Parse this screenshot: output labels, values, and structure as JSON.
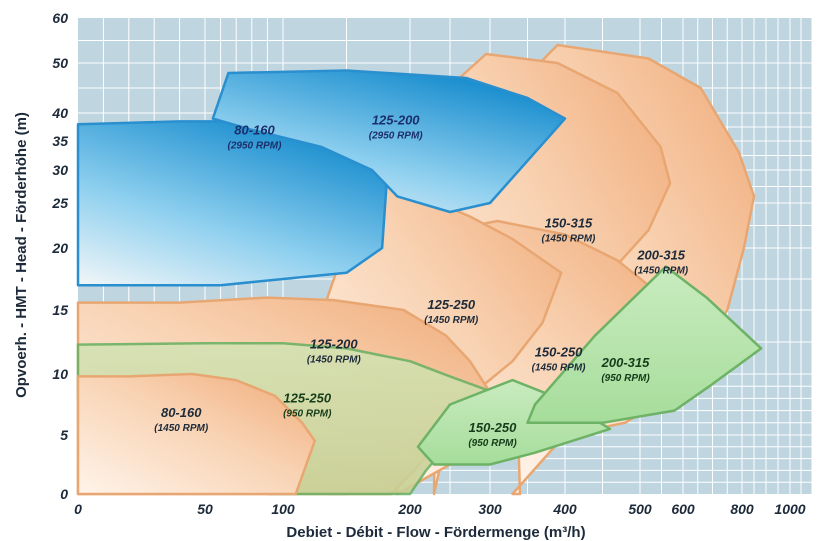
{
  "chart_data": {
    "type": "area",
    "xlabel": "Debiet - Débit  -  Flow  -  Fördermenge   (m³/h)",
    "ylabel": "Opvoerh.  -  HMT  -  Head  -  Förderhöhe  (m)",
    "x_ticks": [
      "0",
      "50",
      "100",
      "200",
      "300",
      "400",
      "500",
      "600",
      "800",
      "1000"
    ],
    "y_ticks": [
      "0",
      "5",
      "10",
      "15",
      "20",
      "25",
      "30",
      "35",
      "40",
      "50",
      "60"
    ],
    "grid": true,
    "colors": {
      "background": "#bfd5e0",
      "grid": "#ffffff",
      "orange": "#f4b98d",
      "orange_edge": "#e8a772",
      "blue": "#2b99d6",
      "green": "#8fce86",
      "green_edge": "#6db265"
    },
    "series": [
      {
        "id": "200-315-1450",
        "label": "200-315",
        "rpm": "(1450 RPM)",
        "speed": 1450,
        "color": "orange",
        "text_color": "#1d2a3a",
        "region": [
          [
            340,
            0
          ],
          [
            325,
            38
          ],
          [
            360,
            49
          ],
          [
            390,
            54
          ],
          [
            520,
            51
          ],
          [
            660,
            45
          ],
          [
            790,
            33
          ],
          [
            850,
            26
          ],
          [
            808,
            20
          ],
          [
            750,
            15
          ],
          [
            640,
            11
          ],
          [
            560,
            8
          ],
          [
            480,
            6
          ],
          [
            400,
            5
          ],
          [
            330,
            0
          ]
        ]
      },
      {
        "id": "150-315-1450",
        "label": "150-315",
        "rpm": "(1450 RPM)",
        "speed": 1450,
        "color": "orange",
        "text_color": "#1d2a3a",
        "region": [
          [
            230,
            0
          ],
          [
            235,
            30
          ],
          [
            255,
            46
          ],
          [
            295,
            52
          ],
          [
            390,
            50
          ],
          [
            470,
            44
          ],
          [
            548,
            34
          ],
          [
            570,
            28
          ],
          [
            520,
            22
          ],
          [
            460,
            18
          ],
          [
            400,
            15
          ],
          [
            320,
            12
          ],
          [
            260,
            9
          ],
          [
            230,
            0
          ]
        ]
      },
      {
        "id": "150-250-1450",
        "label": "150-250",
        "rpm": "(1450 RPM)",
        "speed": 1450,
        "color": "orange",
        "text_color": "#1d2a3a",
        "region": [
          [
            190,
            0
          ],
          [
            190,
            16
          ],
          [
            250,
            22
          ],
          [
            310,
            23
          ],
          [
            400,
            21.5
          ],
          [
            470,
            19
          ],
          [
            555,
            16
          ],
          [
            590,
            14
          ],
          [
            560,
            11
          ],
          [
            520,
            8.5
          ],
          [
            440,
            7
          ],
          [
            380,
            6
          ],
          [
            320,
            4
          ],
          [
            250,
            2.5
          ],
          [
            190,
            0
          ]
        ]
      },
      {
        "id": "125-250-1450",
        "label": "125-250",
        "rpm": "(1450 RPM)",
        "speed": 1450,
        "color": "orange",
        "text_color": "#1d2a3a",
        "region": [
          [
            135,
            0
          ],
          [
            135,
            16
          ],
          [
            170,
            30
          ],
          [
            215,
            26
          ],
          [
            275,
            23.5
          ],
          [
            330,
            21
          ],
          [
            395,
            18
          ],
          [
            370,
            14
          ],
          [
            330,
            11
          ],
          [
            290,
            9
          ],
          [
            250,
            6
          ],
          [
            200,
            2
          ],
          [
            150,
            0
          ]
        ]
      },
      {
        "id": "125-200-1450",
        "label": "125-200",
        "rpm": "(1450 RPM)",
        "speed": 1450,
        "color": "orange",
        "text_color": "#1d2a3a",
        "region": [
          [
            0,
            0
          ],
          [
            0,
            15.6
          ],
          [
            40,
            15.6
          ],
          [
            90,
            16
          ],
          [
            140,
            15.8
          ],
          [
            195,
            15
          ],
          [
            245,
            13
          ],
          [
            275,
            11
          ],
          [
            300,
            8.5
          ],
          [
            255,
            6
          ],
          [
            205,
            2
          ],
          [
            185,
            0
          ]
        ]
      },
      {
        "id": "80-160-2950",
        "label": "80-160",
        "rpm": "(2950 RPM)",
        "speed": 2950,
        "color": "blue",
        "text_color": "#1c2f6b",
        "region": [
          [
            0,
            24
          ],
          [
            0,
            38
          ],
          [
            40,
            38.5
          ],
          [
            70,
            38.5
          ],
          [
            110,
            37
          ],
          [
            145,
            35
          ],
          [
            170,
            32
          ],
          [
            182,
            29
          ],
          [
            178,
            20
          ],
          [
            150,
            18
          ],
          [
            60,
            17
          ],
          [
            0,
            17
          ]
        ]
      },
      {
        "id": "125-200-2950",
        "label": "125-200",
        "rpm": "(2950 RPM)",
        "speed": 2950,
        "color": "blue",
        "text_color": "#1c2f6b",
        "region": [
          [
            55,
            39
          ],
          [
            65,
            48
          ],
          [
            150,
            48.5
          ],
          [
            270,
            47
          ],
          [
            350,
            43
          ],
          [
            400,
            39
          ],
          [
            300,
            25
          ],
          [
            250,
            24
          ],
          [
            190,
            26
          ],
          [
            170,
            30
          ],
          [
            130,
            34
          ],
          [
            80,
            37
          ]
        ]
      },
      {
        "id": "125-250-950",
        "label": "125-250",
        "rpm": "(950 RPM)",
        "speed": 950,
        "color": "green",
        "text_color": "#163d1a",
        "region": [
          [
            0,
            8
          ],
          [
            0,
            12.3
          ],
          [
            50,
            12.4
          ],
          [
            100,
            12.4
          ],
          [
            150,
            12
          ],
          [
            200,
            11
          ],
          [
            250,
            9.8
          ],
          [
            300,
            8.6
          ],
          [
            280,
            6
          ],
          [
            245,
            4
          ],
          [
            220,
            2
          ],
          [
            200,
            0
          ],
          [
            90,
            0
          ],
          [
            0,
            8
          ]
        ]
      },
      {
        "id": "150-250-950",
        "label": "150-250",
        "rpm": "(950 RPM)",
        "speed": 950,
        "color": "green",
        "text_color": "#163d1a",
        "region": [
          [
            210,
            4
          ],
          [
            250,
            7.5
          ],
          [
            330,
            9.5
          ],
          [
            400,
            7.8
          ],
          [
            460,
            5.5
          ],
          [
            360,
            3.5
          ],
          [
            300,
            2.5
          ],
          [
            230,
            2.5
          ],
          [
            210,
            4
          ]
        ]
      },
      {
        "id": "200-315-950",
        "label": "200-315",
        "rpm": "(950 RPM)",
        "speed": 950,
        "color": "green",
        "text_color": "#163d1a",
        "region": [
          [
            350,
            6
          ],
          [
            360,
            7.5
          ],
          [
            440,
            13
          ],
          [
            560,
            18.5
          ],
          [
            680,
            16
          ],
          [
            880,
            12
          ],
          [
            690,
            9
          ],
          [
            580,
            7
          ],
          [
            450,
            6
          ],
          [
            350,
            6
          ]
        ]
      },
      {
        "id": "80-160-1450",
        "label": "80-160",
        "rpm": "(1450 RPM)",
        "speed": 1450,
        "color": "orange",
        "text_color": "#1d2a3a",
        "region": [
          [
            0,
            0
          ],
          [
            0,
            9.8
          ],
          [
            20,
            9.8
          ],
          [
            45,
            10
          ],
          [
            70,
            9.5
          ],
          [
            95,
            8.2
          ],
          [
            115,
            6
          ],
          [
            125,
            4.5
          ],
          [
            110,
            0
          ]
        ]
      }
    ]
  }
}
